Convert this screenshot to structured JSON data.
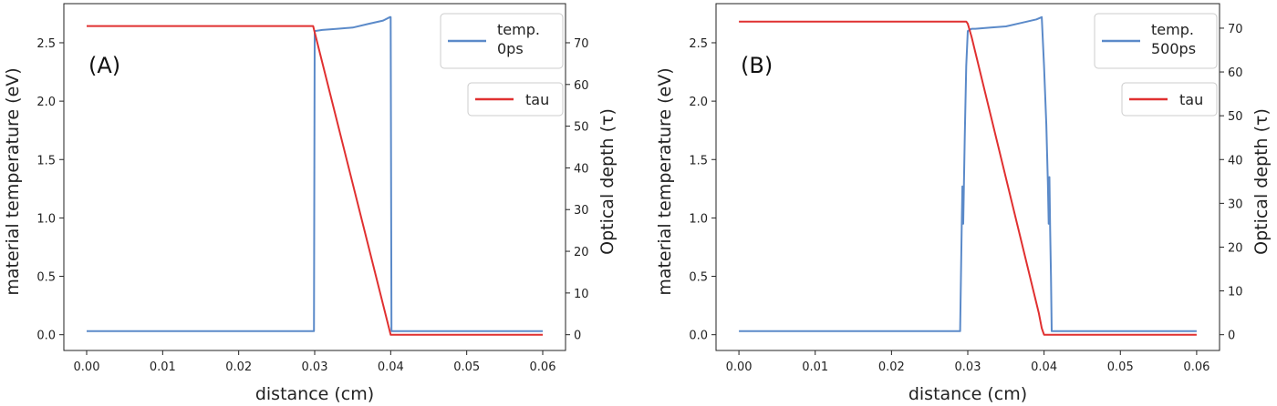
{
  "chart_data": [
    {
      "type": "line",
      "panel_label": "(A)",
      "xlabel": "distance (cm)",
      "ylabel": "material temperature (eV)",
      "y2label": "Optical depth (τ)",
      "xlim": [
        -0.003,
        0.063
      ],
      "ylim": [
        -0.135,
        2.835
      ],
      "y2lim": [
        -3.78,
        79.38
      ],
      "xticks": [
        "0.00",
        "0.01",
        "0.02",
        "0.03",
        "0.04",
        "0.05",
        "0.06"
      ],
      "yticks": [
        "0.0",
        "0.5",
        "1.0",
        "1.5",
        "2.0",
        "2.5"
      ],
      "y2ticks": [
        "0",
        "10",
        "20",
        "30",
        "40",
        "50",
        "60",
        "70"
      ],
      "grid": false,
      "colors": {
        "temp": "#5b8ac9",
        "tau": "#e03030"
      },
      "legend": [
        {
          "text": [
            "temp.",
            "0ps"
          ],
          "position": "top-right"
        },
        {
          "text": [
            "tau"
          ],
          "position": "upper-right"
        }
      ],
      "series": [
        {
          "name": "temp. 0ps",
          "axis": "left",
          "x": [
            0.0,
            0.0299,
            0.03,
            0.031,
            0.033,
            0.035,
            0.037,
            0.039,
            0.0399,
            0.04,
            0.0401,
            0.06
          ],
          "y": [
            0.03,
            0.03,
            2.6,
            2.61,
            2.62,
            2.63,
            2.66,
            2.69,
            2.72,
            2.72,
            0.03,
            0.03
          ]
        },
        {
          "name": "tau",
          "axis": "right",
          "x": [
            0.0,
            0.0298,
            0.03,
            0.04,
            0.06
          ],
          "y": [
            74.0,
            74.0,
            72.5,
            0.0,
            0.0
          ]
        }
      ]
    },
    {
      "type": "line",
      "panel_label": "(B)",
      "xlabel": "distance (cm)",
      "ylabel": "material temperature (eV)",
      "y2label": "Optical depth (τ)",
      "xlim": [
        -0.003,
        0.063
      ],
      "ylim": [
        -0.135,
        2.835
      ],
      "y2lim": [
        -3.6,
        75.6
      ],
      "xticks": [
        "0.00",
        "0.01",
        "0.02",
        "0.03",
        "0.04",
        "0.05",
        "0.06"
      ],
      "yticks": [
        "0.0",
        "0.5",
        "1.0",
        "1.5",
        "2.0",
        "2.5"
      ],
      "y2ticks": [
        "0",
        "10",
        "20",
        "30",
        "40",
        "50",
        "60",
        "70"
      ],
      "grid": false,
      "colors": {
        "temp": "#5b8ac9",
        "tau": "#e03030"
      },
      "legend": [
        {
          "text": [
            "temp.",
            "500ps"
          ],
          "position": "top-right"
        },
        {
          "text": [
            "tau"
          ],
          "position": "upper-right"
        }
      ],
      "series": [
        {
          "name": "temp. 500ps",
          "axis": "left",
          "x": [
            0.0,
            0.029,
            0.0292,
            0.0293,
            0.0294,
            0.0295,
            0.0296,
            0.0298,
            0.03,
            0.0305,
            0.031,
            0.033,
            0.035,
            0.037,
            0.039,
            0.0397,
            0.04,
            0.0403,
            0.0405,
            0.0406,
            0.0407,
            0.0408,
            0.0409,
            0.041,
            0.06
          ],
          "y": [
            0.03,
            0.03,
            0.9,
            1.27,
            0.95,
            1.3,
            1.7,
            2.3,
            2.6,
            2.62,
            2.62,
            2.63,
            2.64,
            2.67,
            2.7,
            2.72,
            2.3,
            1.8,
            1.3,
            0.95,
            1.35,
            0.9,
            0.5,
            0.03,
            0.03
          ]
        },
        {
          "name": "tau",
          "axis": "right",
          "x": [
            0.0,
            0.0298,
            0.03,
            0.0305,
            0.0393,
            0.0397,
            0.04,
            0.06
          ],
          "y": [
            71.5,
            71.5,
            71.0,
            68.0,
            5.0,
            1.5,
            0.0,
            0.0
          ]
        }
      ]
    }
  ]
}
